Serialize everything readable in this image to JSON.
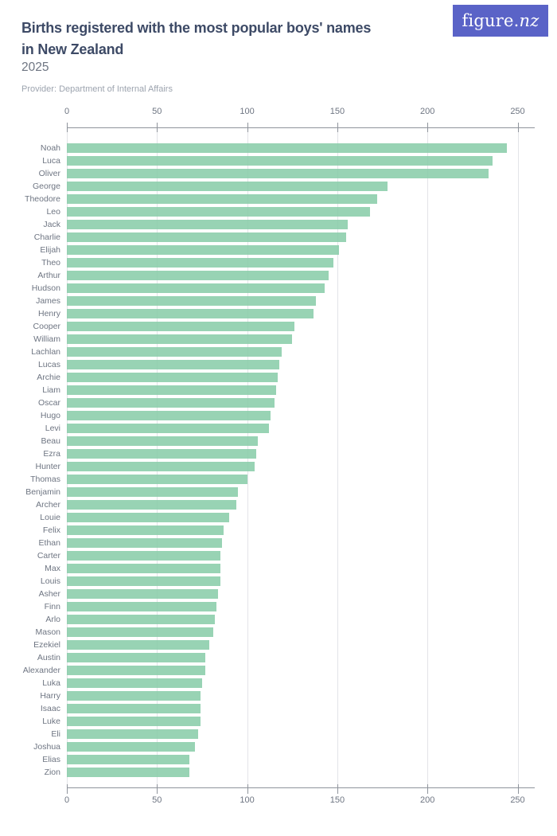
{
  "header": {
    "title_line1": "Births registered with the most popular boys' names",
    "title_line2": "in New Zealand",
    "subtitle": "2025",
    "provider": "Provider: Department of Internal Affairs",
    "logo_text_main": "figure.",
    "logo_text_suffix": "nz"
  },
  "colors": {
    "bar_fill": "#96d3b4",
    "logo_background": "#5a63c7",
    "title_text": "#3d4a66",
    "subtitle_text": "#6e7582",
    "provider_text": "#9da4af",
    "axis_text": "#6e7582",
    "axis_line": "#8f949c",
    "gridline": "#e3e4e8"
  },
  "chart_data": {
    "type": "bar",
    "orientation": "horizontal",
    "title": "Births registered with the most popular boys' names in New Zealand",
    "subtitle": "2025",
    "xlabel": "",
    "ylabel": "",
    "xlim": [
      0,
      250
    ],
    "x_ticks": [
      0,
      50,
      100,
      150,
      200,
      250
    ],
    "grid": true,
    "categories": [
      "Noah",
      "Luca",
      "Oliver",
      "George",
      "Theodore",
      "Leo",
      "Jack",
      "Charlie",
      "Elijah",
      "Theo",
      "Arthur",
      "Hudson",
      "James",
      "Henry",
      "Cooper",
      "William",
      "Lachlan",
      "Lucas",
      "Archie",
      "Liam",
      "Oscar",
      "Hugo",
      "Levi",
      "Beau",
      "Ezra",
      "Hunter",
      "Thomas",
      "Benjamin",
      "Archer",
      "Louie",
      "Felix",
      "Ethan",
      "Carter",
      "Max",
      "Louis",
      "Asher",
      "Finn",
      "Arlo",
      "Mason",
      "Ezekiel",
      "Austin",
      "Alexander",
      "Luka",
      "Harry",
      "Isaac",
      "Luke",
      "Eli",
      "Joshua",
      "Elias",
      "Zion"
    ],
    "values": [
      244,
      236,
      234,
      178,
      172,
      168,
      156,
      155,
      151,
      148,
      145,
      143,
      138,
      137,
      126,
      125,
      119,
      118,
      117,
      116,
      115,
      113,
      112,
      106,
      105,
      104,
      100,
      95,
      94,
      90,
      87,
      86,
      85,
      85,
      85,
      84,
      83,
      82,
      81,
      79,
      77,
      77,
      75,
      74,
      74,
      74,
      73,
      71,
      68,
      68
    ]
  }
}
